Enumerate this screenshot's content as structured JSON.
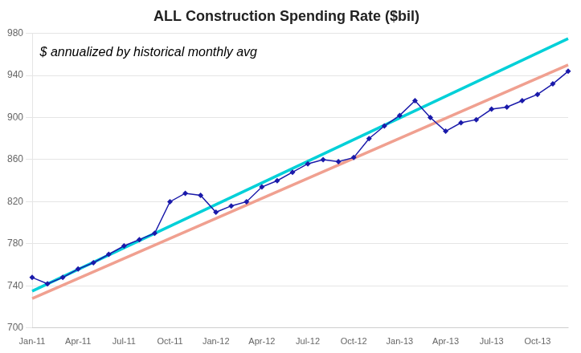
{
  "chart_data": {
    "type": "line",
    "title": "ALL Construction Spending Rate ($bil)",
    "categories": [
      "Jan-11",
      null,
      null,
      "Apr-11",
      null,
      null,
      "Jul-11",
      null,
      null,
      "Oct-11",
      null,
      null,
      "Jan-12",
      null,
      null,
      "Apr-12",
      null,
      null,
      "Jul-12",
      null,
      null,
      "Oct-12",
      null,
      null,
      "Jan-13",
      null,
      null,
      "Apr-13",
      null,
      null,
      "Jul-13",
      null,
      null,
      "Oct-13",
      null,
      null
    ],
    "series": [
      {
        "color": "#00d0d8",
        "line_style": "solid",
        "values": [
          735,
          null,
          null,
          null,
          null,
          null,
          null,
          null,
          null,
          null,
          null,
          null,
          null,
          null,
          null,
          null,
          null,
          null,
          null,
          null,
          null,
          null,
          null,
          null,
          null,
          null,
          null,
          null,
          null,
          null,
          null,
          null,
          null,
          null,
          null,
          975
        ]
      },
      {
        "color": "#f0a090",
        "line_style": "solid",
        "values": [
          728,
          null,
          null,
          null,
          null,
          null,
          null,
          null,
          null,
          null,
          null,
          null,
          null,
          null,
          null,
          null,
          null,
          null,
          null,
          null,
          null,
          null,
          null,
          null,
          null,
          null,
          null,
          null,
          null,
          null,
          null,
          null,
          null,
          null,
          null,
          950
        ]
      },
      {
        "color": "#1a1aaa",
        "line_style": "solid",
        "marker": "diamond",
        "values": [
          748,
          742,
          748,
          756,
          762,
          770,
          778,
          784,
          790,
          820,
          828,
          826,
          810,
          816,
          820,
          834,
          840,
          848,
          856,
          860,
          858,
          862,
          880,
          892,
          902,
          916,
          900,
          887,
          895,
          898,
          908,
          910,
          916,
          922,
          932,
          944
        ]
      }
    ],
    "ylim": [
      700,
      980
    ],
    "yticks": [
      700,
      740,
      780,
      820,
      860,
      900,
      940,
      980
    ],
    "grid": true,
    "annotations": [
      {
        "text": "$ annualized by historical monthly avg",
        "x": 0.5,
        "y": 958
      }
    ]
  }
}
